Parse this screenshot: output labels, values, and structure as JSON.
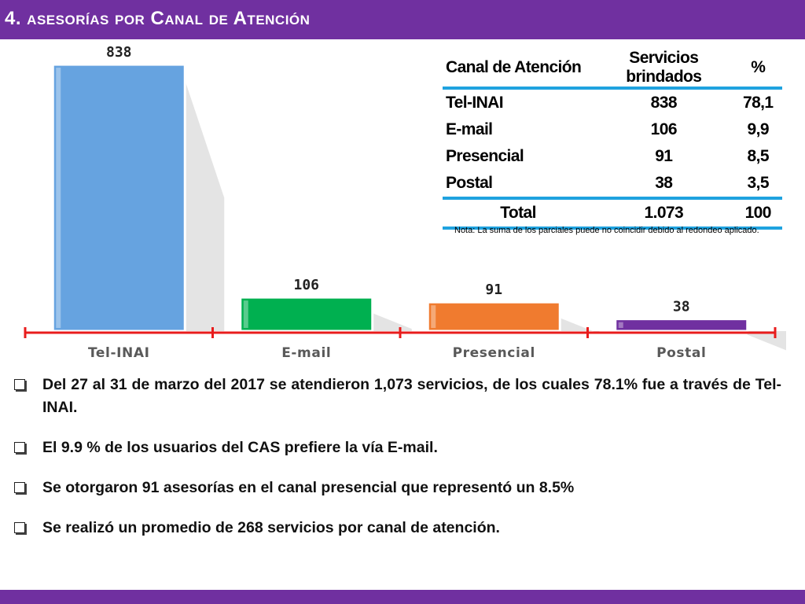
{
  "slide": {
    "title": "4. asesorías por Canal de Atención"
  },
  "chart_data": {
    "type": "bar",
    "categories": [
      "Tel-INAI",
      "E-mail",
      "Presencial",
      "Postal"
    ],
    "values": [
      838,
      106,
      91,
      38
    ],
    "data_labels": [
      "838",
      "106",
      "91",
      "38"
    ],
    "ylim": [
      0,
      900
    ],
    "grid": false,
    "colors": [
      "#66a3e0",
      "#00b050",
      "#f07b2f",
      "#7030a0"
    ],
    "axis_color": "#e81c1c"
  },
  "table": {
    "headers": [
      "Canal de Atención",
      "Servicios brindados",
      "%"
    ],
    "rows": [
      [
        "Tel-INAI",
        "838",
        "78,1"
      ],
      [
        "E-mail",
        "106",
        "9,9"
      ],
      [
        "Presencial",
        "91",
        "8,5"
      ],
      [
        "Postal",
        "38",
        "3,5"
      ]
    ],
    "total": [
      "Total",
      "1.073",
      "100"
    ],
    "border_color": "#1fa2df"
  },
  "note": "Nota: La suma de los parciales puede no coincidir debido al redondeo aplicado.",
  "bullets": [
    "Del 27 al 31 de marzo del 2017 se atendieron 1,073 servicios, de los cuales 78.1% fue a través de Tel-INAI.",
    "El 9.9 % de los usuarios del CAS prefiere la vía E-mail.",
    "Se otorgaron 91 asesorías en el canal presencial que representó un 8.5%",
    "Se realizó un promedio de 268 servicios por canal de atención."
  ],
  "icons": {
    "bullet": "checkbox-bullet-icon"
  },
  "theme": {
    "accent": "#7030a0"
  }
}
